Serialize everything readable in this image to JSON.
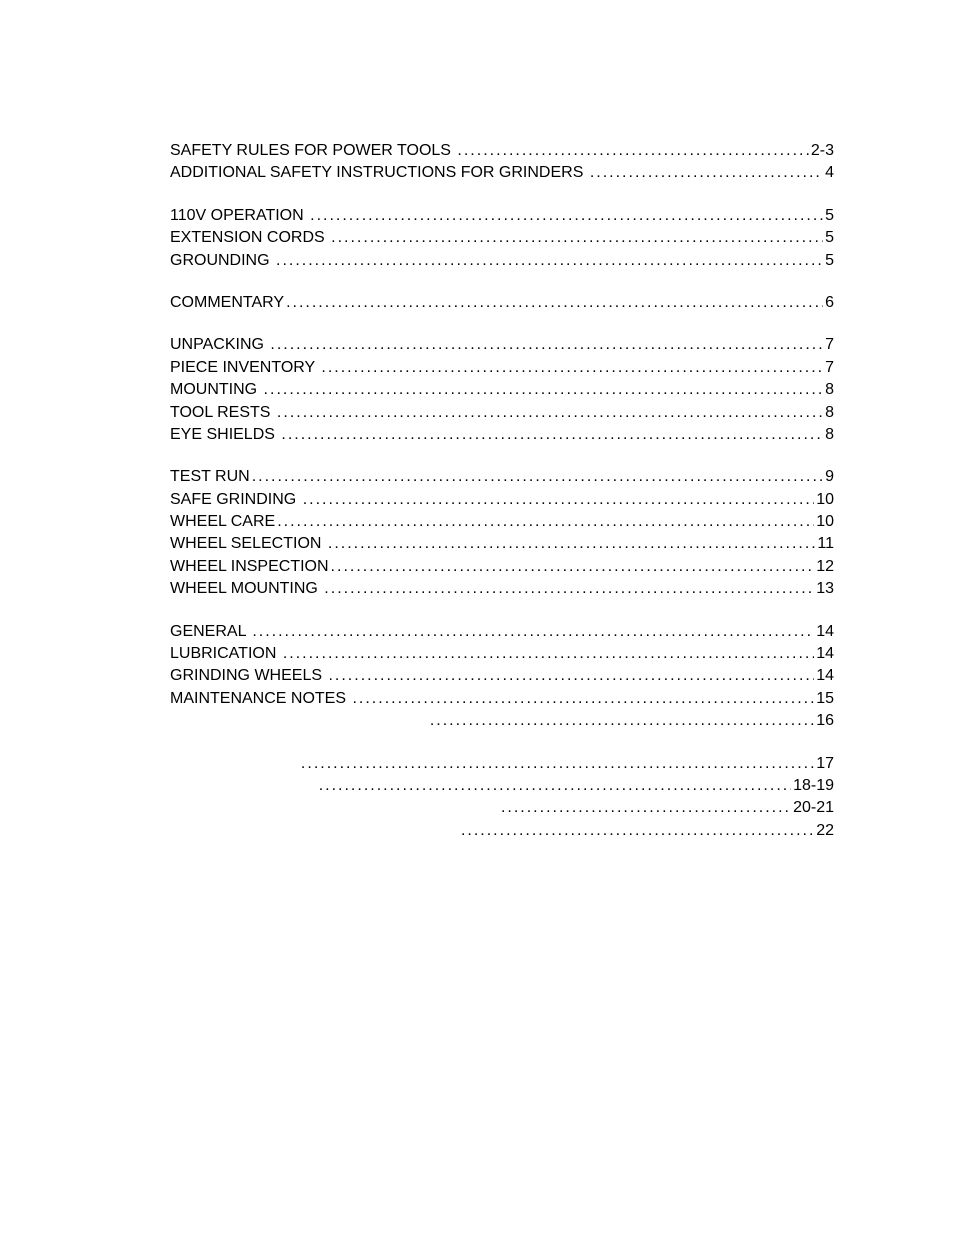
{
  "toc": {
    "groups": [
      {
        "entries": [
          {
            "label": "SAFETY RULES FOR POWER TOOLS ",
            "page": "2-3"
          },
          {
            "label": "ADDITIONAL SAFETY INSTRUCTIONS FOR GRINDERS ",
            "page": "4"
          }
        ]
      },
      {
        "entries": [
          {
            "label": "110V OPERATION ",
            "page": "5"
          },
          {
            "label": "EXTENSION CORDS ",
            "page": "5"
          },
          {
            "label": "GROUNDING ",
            "page": "5"
          }
        ]
      },
      {
        "entries": [
          {
            "label": "COMMENTARY",
            "page": "6"
          }
        ]
      },
      {
        "entries": [
          {
            "label": "UNPACKING ",
            "page": "7"
          },
          {
            "label": "PIECE INVENTORY ",
            "page": "7"
          },
          {
            "label": "MOUNTING ",
            "page": "8"
          },
          {
            "label": "TOOL RESTS ",
            "page": "8"
          },
          {
            "label": "EYE SHIELDS ",
            "page": "8"
          }
        ]
      },
      {
        "entries": [
          {
            "label": "TEST RUN",
            "page": "9"
          },
          {
            "label": "SAFE GRINDING ",
            "page": "10"
          },
          {
            "label": "WHEEL CARE",
            "page": "10"
          },
          {
            "label": "WHEEL SELECTION ",
            "page": "11"
          },
          {
            "label": "WHEEL INSPECTION",
            "page": "12"
          },
          {
            "label": "WHEEL MOUNTING ",
            "page": "13"
          }
        ]
      },
      {
        "entries": [
          {
            "label": "GENERAL ",
            "page": "14"
          },
          {
            "label": "LUBRICATION ",
            "page": "14"
          },
          {
            "label": "GRINDING WHEELS ",
            "page": "14"
          },
          {
            "label": "MAINTENANCE NOTES ",
            "page": "15"
          },
          {
            "label": "                                                          ",
            "page": "16"
          }
        ]
      },
      {
        "entries": [
          {
            "label": "                             ",
            "page": "17"
          },
          {
            "label": "                                 ",
            "page": "18-19"
          },
          {
            "label": "                                                                          ",
            "page": "20-21"
          },
          {
            "label": "                                                                 ",
            "page": "22"
          }
        ]
      }
    ]
  },
  "style": {
    "font_size": 16,
    "text_color": "#000000",
    "background_color": "#ffffff",
    "line_height": 1.4,
    "group_spacing": 20
  }
}
